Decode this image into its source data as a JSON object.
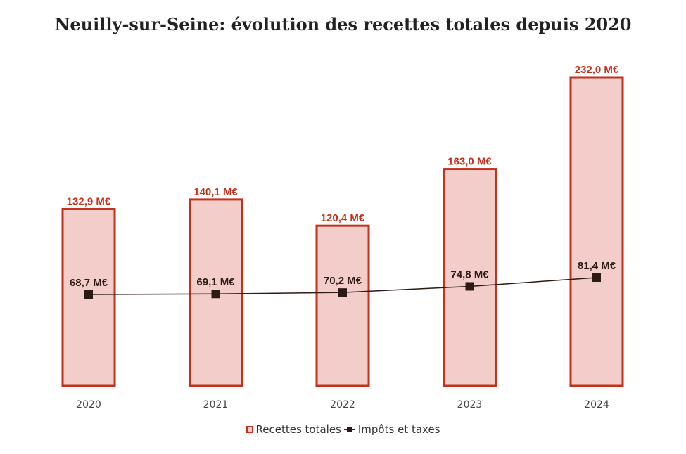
{
  "colors": {
    "bar_fill": "#f3cdca",
    "bar_stroke": "#c0321d",
    "line": "#2c1a14",
    "bar_label": "#c0321d",
    "line_label": "#2c1a14"
  },
  "chart_data": {
    "type": "bar",
    "title": "Neuilly-sur-Seine: évolution des recettes totales depuis 2020",
    "categories": [
      "2020",
      "2021",
      "2022",
      "2023",
      "2024"
    ],
    "series": [
      {
        "name": "Recettes totales",
        "kind": "bar",
        "values": [
          132.9,
          140.1,
          120.4,
          163.0,
          232.0
        ],
        "labels": [
          "132,9 M€",
          "140,1 M€",
          "120,4 M€",
          "163,0 M€",
          "232,0 M€"
        ]
      },
      {
        "name": "Impôts et taxes",
        "kind": "line",
        "values": [
          68.7,
          69.1,
          70.2,
          74.8,
          81.4
        ],
        "labels": [
          "68,7 M€",
          "69,1 M€",
          "70,2 M€",
          "74,8 M€",
          "81,4 M€"
        ]
      }
    ],
    "xlabel": "",
    "ylabel": "",
    "ylim": [
      0,
      232
    ],
    "grid": false,
    "legend_position": "bottom"
  }
}
